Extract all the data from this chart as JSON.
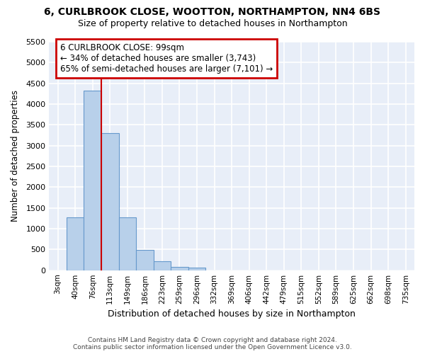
{
  "title1": "6, CURLBROOK CLOSE, WOOTTON, NORTHAMPTON, NN4 6BS",
  "title2": "Size of property relative to detached houses in Northampton",
  "xlabel": "Distribution of detached houses by size in Northampton",
  "ylabel": "Number of detached properties",
  "footnote": "Contains HM Land Registry data © Crown copyright and database right 2024.\nContains public sector information licensed under the Open Government Licence v3.0.",
  "bar_labels": [
    "3sqm",
    "40sqm",
    "76sqm",
    "113sqm",
    "149sqm",
    "186sqm",
    "223sqm",
    "259sqm",
    "296sqm",
    "332sqm",
    "369sqm",
    "406sqm",
    "442sqm",
    "479sqm",
    "515sqm",
    "552sqm",
    "589sqm",
    "625sqm",
    "662sqm",
    "698sqm",
    "735sqm"
  ],
  "bar_heights": [
    0,
    1270,
    4330,
    3300,
    1280,
    490,
    220,
    80,
    60,
    0,
    0,
    0,
    0,
    0,
    0,
    0,
    0,
    0,
    0,
    0,
    0
  ],
  "bar_color": "#b8d0ea",
  "bar_edge_color": "#6699cc",
  "bg_color": "#e8eef8",
  "grid_color": "#ffffff",
  "vline_x": 2.5,
  "vline_color": "#cc0000",
  "annotation_text": "6 CURLBROOK CLOSE: 99sqm\n← 34% of detached houses are smaller (3,743)\n65% of semi-detached houses are larger (7,101) →",
  "annotation_box_color": "#cc0000",
  "ylim": [
    0,
    5500
  ],
  "yticks": [
    0,
    500,
    1000,
    1500,
    2000,
    2500,
    3000,
    3500,
    4000,
    4500,
    5000,
    5500
  ],
  "fig_bg": "#ffffff"
}
